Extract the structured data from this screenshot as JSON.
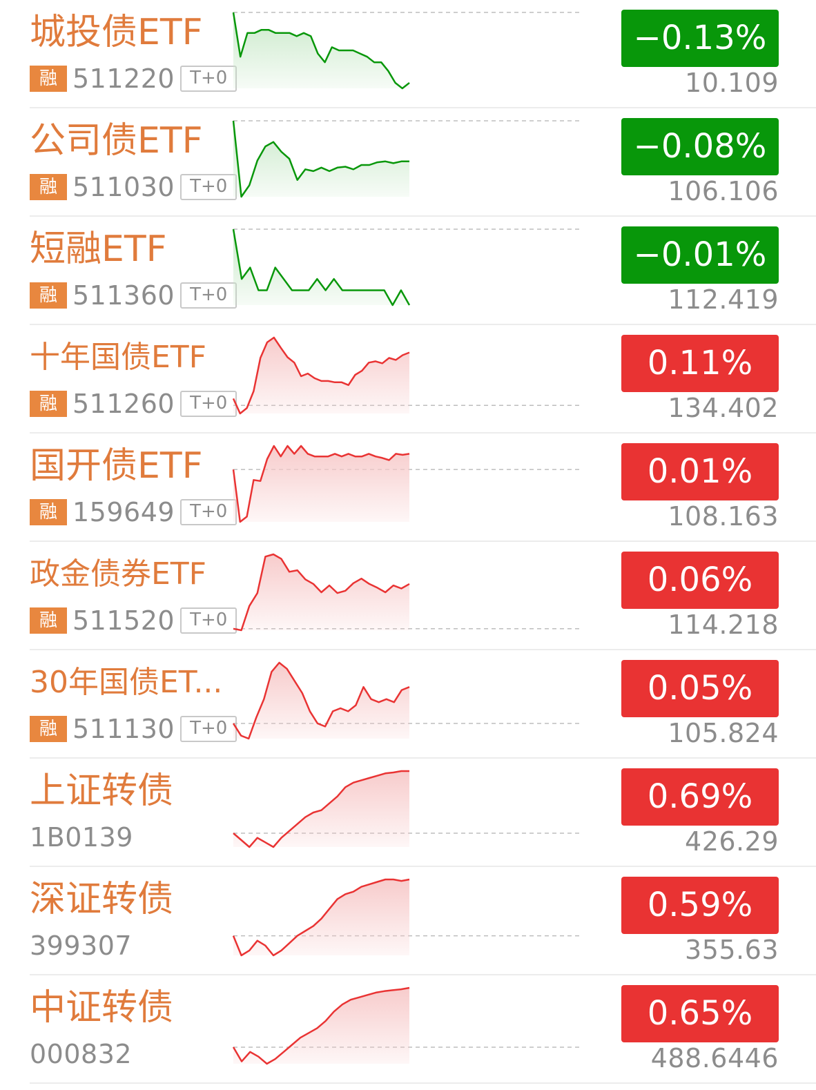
{
  "colors": {
    "up": "#e93333",
    "down": "#08970a",
    "name": "#e07b3c",
    "tag_bg": "#e8873f",
    "gray_text": "#8c8c8c",
    "up_fill": "#f7c9c9",
    "down_fill": "#c7e8c7"
  },
  "rows": [
    {
      "name": "城投债ETF",
      "code": "511220",
      "rong_tag": "融",
      "t0_tag": "T+0",
      "change": "−0.13%",
      "price": "10.109",
      "trend": "down",
      "spark": [
        0.0,
        -0.56,
        -0.26,
        -0.26,
        -0.22,
        -0.22,
        -0.26,
        -0.26,
        -0.26,
        -0.3,
        -0.26,
        -0.3,
        -0.52,
        -0.63,
        -0.44,
        -0.48,
        -0.48,
        -0.48,
        -0.52,
        -0.56,
        -0.63,
        -0.63,
        -0.74,
        -0.89,
        -0.96,
        -0.89
      ]
    },
    {
      "name": "公司债ETF",
      "code": "511030",
      "rong_tag": "融",
      "t0_tag": "T+0",
      "change": "−0.08%",
      "price": "106.106",
      "trend": "down",
      "spark": [
        0.0,
        -0.86,
        -0.73,
        -0.45,
        -0.29,
        -0.24,
        -0.35,
        -0.43,
        -0.67,
        -0.55,
        -0.57,
        -0.53,
        -0.57,
        -0.53,
        -0.52,
        -0.55,
        -0.5,
        -0.5,
        -0.47,
        -0.46,
        -0.48,
        -0.46,
        -0.46
      ]
    },
    {
      "name": "短融ETF",
      "code": "511360",
      "rong_tag": "融",
      "t0_tag": "T+0",
      "change": "−0.01%",
      "price": "112.419",
      "trend": "down",
      "spark": [
        0.0,
        -0.57,
        -0.44,
        -0.7,
        -0.7,
        -0.44,
        -0.57,
        -0.7,
        -0.7,
        -0.7,
        -0.57,
        -0.7,
        -0.57,
        -0.7,
        -0.7,
        -0.7,
        -0.7,
        -0.7,
        -0.7,
        -0.87,
        -0.7,
        -0.87
      ]
    },
    {
      "name": "十年国债ETF",
      "code": "511260",
      "rong_tag": "融",
      "t0_tag": "T+0",
      "change": "0.11%",
      "price": "134.402",
      "trend": "up",
      "spark": [
        0.1,
        -0.12,
        -0.04,
        0.21,
        0.7,
        0.93,
        1.0,
        0.85,
        0.71,
        0.63,
        0.43,
        0.47,
        0.4,
        0.36,
        0.36,
        0.34,
        0.34,
        0.3,
        0.45,
        0.51,
        0.63,
        0.65,
        0.62,
        0.7,
        0.67,
        0.74,
        0.78
      ]
    },
    {
      "name": "国开债ETF",
      "code": "159649",
      "rong_tag": "融",
      "t0_tag": "T+0",
      "change": "0.01%",
      "price": "108.163",
      "trend": "up",
      "spark": [
        0.0,
        -1.0,
        -0.9,
        -0.2,
        -0.22,
        0.2,
        0.45,
        0.25,
        0.45,
        0.3,
        0.45,
        0.3,
        0.25,
        0.25,
        0.25,
        0.3,
        0.25,
        0.3,
        0.25,
        0.25,
        0.3,
        0.25,
        0.22,
        0.18,
        0.3,
        0.28,
        0.3
      ]
    },
    {
      "name": "政金债券ETF",
      "code": "511520",
      "rong_tag": "融",
      "t0_tag": "T+0",
      "change": "0.06%",
      "price": "114.218",
      "trend": "up",
      "spark": [
        0.0,
        -0.02,
        0.3,
        0.47,
        0.95,
        0.98,
        0.92,
        0.75,
        0.77,
        0.65,
        0.59,
        0.48,
        0.57,
        0.47,
        0.5,
        0.6,
        0.66,
        0.59,
        0.54,
        0.48,
        0.57,
        0.53,
        0.59
      ]
    },
    {
      "name": "30年国债ET...",
      "code": "511130",
      "rong_tag": "融",
      "t0_tag": "T+0",
      "change": "0.05%",
      "price": "105.824",
      "trend": "up",
      "spark": [
        0.0,
        -0.2,
        -0.25,
        0.1,
        0.4,
        0.85,
        1.0,
        0.9,
        0.7,
        0.5,
        0.2,
        0.0,
        -0.05,
        0.2,
        0.25,
        0.2,
        0.3,
        0.6,
        0.4,
        0.35,
        0.4,
        0.35,
        0.55,
        0.6
      ]
    },
    {
      "name": "上证转债",
      "code": "1B0139",
      "rong_tag": "",
      "t0_tag": "",
      "change": "0.69%",
      "price": "426.29",
      "trend": "up",
      "spark": [
        0.0,
        -0.15,
        -0.3,
        -0.1,
        -0.2,
        -0.3,
        -0.1,
        0.05,
        0.2,
        0.35,
        0.45,
        0.5,
        0.65,
        0.8,
        1.0,
        1.1,
        1.15,
        1.2,
        1.25,
        1.3,
        1.32,
        1.35,
        1.35
      ]
    },
    {
      "name": "深证转债",
      "code": "399307",
      "rong_tag": "",
      "t0_tag": "",
      "change": "0.59%",
      "price": "355.63",
      "trend": "up",
      "spark": [
        0.0,
        -0.4,
        -0.3,
        -0.1,
        -0.2,
        -0.4,
        -0.3,
        -0.15,
        0.0,
        0.1,
        0.2,
        0.35,
        0.55,
        0.75,
        0.85,
        0.9,
        1.0,
        1.05,
        1.1,
        1.15,
        1.15,
        1.12,
        1.15
      ]
    },
    {
      "name": "中证转债",
      "code": "000832",
      "rong_tag": "",
      "t0_tag": "",
      "change": "0.65%",
      "price": "488.6446",
      "trend": "up",
      "spark": [
        0.0,
        -0.3,
        -0.1,
        -0.2,
        -0.35,
        -0.25,
        -0.1,
        0.05,
        0.2,
        0.3,
        0.4,
        0.55,
        0.75,
        0.9,
        1.0,
        1.05,
        1.1,
        1.15,
        1.18,
        1.2,
        1.22,
        1.25
      ]
    }
  ]
}
